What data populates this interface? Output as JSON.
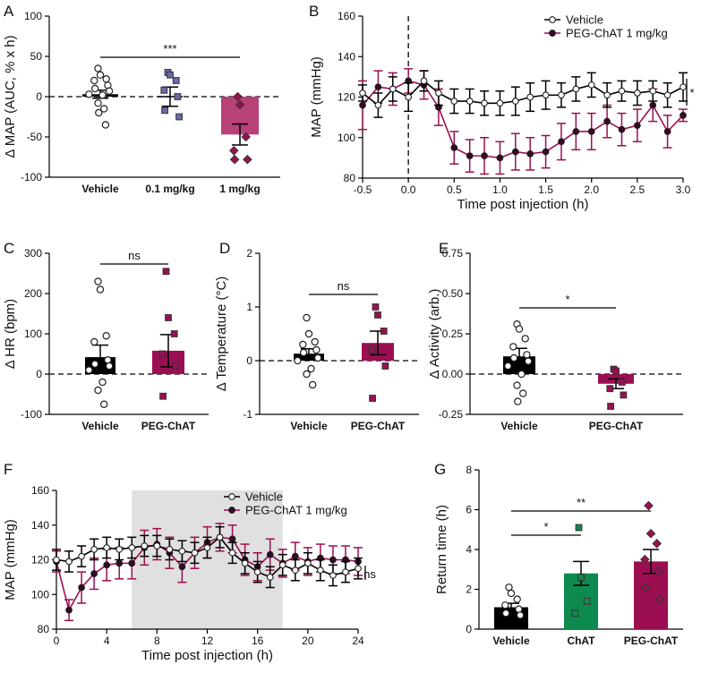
{
  "colors": {
    "vehicle": "#000000",
    "low": "#6a6aa8",
    "peg": "#9b0f52",
    "peg_light": "#b8417a",
    "chat": "#0f8a4e",
    "shade": "#e0e0e0"
  },
  "chart_data": [
    {
      "id": "A",
      "letter": "A",
      "type": "bar",
      "ylabel": "Δ MAP (AUC, % x h)",
      "ylim": [
        -100,
        100
      ],
      "yticks": [
        "100",
        "50",
        "0",
        "-50",
        "-100"
      ],
      "categories": [
        "Vehicle",
        "0.1 mg/kg",
        "1 mg/kg"
      ],
      "values": [
        3,
        0,
        -47
      ],
      "errors": [
        5,
        12,
        13
      ],
      "points": [
        [
          35,
          27,
          22,
          20,
          14,
          10,
          7,
          3,
          2,
          -8,
          -15,
          -20,
          -35
        ],
        [
          30,
          27,
          20,
          8,
          0,
          -17,
          -25
        ],
        [
          0,
          -10,
          -50,
          -67,
          -78,
          -78
        ]
      ],
      "significance": [
        {
          "from": 0,
          "to": 2,
          "label": "***"
        }
      ]
    },
    {
      "id": "B",
      "letter": "B",
      "type": "line",
      "ylabel": "MAP (mmHg)",
      "xlabel": "Time post injection (h)",
      "xlim": [
        -0.5,
        3.0
      ],
      "ylim": [
        80,
        160
      ],
      "xticks": [
        "-0.5",
        "0.0",
        "0.5",
        "1.0",
        "1.5",
        "2.0",
        "2.5",
        "3.0"
      ],
      "yticks": [
        "160",
        "140",
        "120",
        "100",
        "80"
      ],
      "x": [
        -0.5,
        -0.33,
        -0.17,
        0,
        0.17,
        0.33,
        0.5,
        0.67,
        0.83,
        1.0,
        1.17,
        1.33,
        1.5,
        1.67,
        1.83,
        2.0,
        2.17,
        2.33,
        2.5,
        2.67,
        2.83,
        3.0
      ],
      "series": [
        {
          "name": "Vehicle",
          "values": [
            122,
            116,
            124,
            120,
            128,
            122,
            118,
            118,
            117,
            117,
            118,
            120,
            121,
            121,
            124,
            126,
            121,
            123,
            122,
            123,
            121,
            125
          ],
          "err": [
            4,
            6,
            6,
            7,
            5,
            6,
            6,
            6,
            6,
            6,
            7,
            7,
            7,
            6,
            6,
            6,
            6,
            5,
            6,
            5,
            6,
            7
          ]
        },
        {
          "name": "PEG-ChAT 1 mg/kg",
          "values": [
            116,
            125,
            124,
            128,
            126,
            115,
            95,
            91,
            91,
            90,
            93,
            92,
            93,
            98,
            103,
            103,
            108,
            104,
            106,
            116,
            103,
            111
          ],
          "err": [
            12,
            8,
            8,
            6,
            7,
            9,
            8,
            8,
            9,
            8,
            9,
            8,
            8,
            9,
            9,
            9,
            8,
            8,
            8,
            8,
            8,
            3
          ]
        }
      ],
      "legend": [
        "Vehicle",
        "PEG-ChAT 1 mg/kg"
      ],
      "annotation": "*"
    },
    {
      "id": "C",
      "letter": "C",
      "type": "bar",
      "ylabel": "Δ HR (bpm)",
      "ylim": [
        -100,
        300
      ],
      "yticks": [
        "300",
        "200",
        "100",
        "0",
        "-100"
      ],
      "categories": [
        "Vehicle",
        "PEG-ChAT"
      ],
      "values": [
        42,
        58
      ],
      "errors": [
        30,
        40
      ],
      "points": [
        [
          230,
          210,
          95,
          80,
          35,
          25,
          20,
          10,
          -20,
          -40,
          -75
        ],
        [
          255,
          140,
          100,
          50,
          20,
          -55
        ]
      ],
      "significance": [
        {
          "from": 0,
          "to": 1,
          "label": "ns"
        }
      ]
    },
    {
      "id": "D",
      "letter": "D",
      "type": "bar",
      "ylabel": "Δ Temperature (°C)",
      "ylim": [
        -1,
        2
      ],
      "yticks": [
        "2",
        "1",
        "0",
        "-1"
      ],
      "categories": [
        "Vehicle",
        "PEG-ChAT"
      ],
      "values": [
        0.13,
        0.33
      ],
      "errors": [
        0.09,
        0.22
      ],
      "points": [
        [
          0.8,
          0.5,
          0.35,
          0.3,
          0.2,
          0.15,
          0.05,
          0.0,
          -0.15,
          -0.25,
          -0.45
        ],
        [
          1.0,
          0.85,
          0.55,
          0.2,
          -0.1,
          -0.7
        ]
      ],
      "significance": [
        {
          "from": 0,
          "to": 1,
          "label": "ns"
        }
      ]
    },
    {
      "id": "E",
      "letter": "E",
      "type": "bar",
      "ylabel": "Δ Activity (arb.)",
      "ylim": [
        -0.25,
        0.75
      ],
      "yticks": [
        "0.75",
        "0.50",
        "0.25",
        "0.00",
        "-0.25"
      ],
      "categories": [
        "Vehicle",
        "PEG-ChAT"
      ],
      "values": [
        0.11,
        -0.06
      ],
      "errors": [
        0.05,
        0.03
      ],
      "points": [
        [
          0.31,
          0.28,
          0.22,
          0.17,
          0.12,
          0.1,
          0.08,
          0.05,
          0.0,
          -0.07,
          -0.12,
          -0.17
        ],
        [
          0.03,
          0.02,
          -0.05,
          -0.09,
          -0.13,
          -0.2
        ]
      ],
      "significance": [
        {
          "from": 0,
          "to": 1,
          "label": "*"
        }
      ]
    },
    {
      "id": "F",
      "letter": "F",
      "type": "line",
      "ylabel": "MAP (mmHg)",
      "xlabel": "Time post injection (h)",
      "xlim": [
        0,
        24
      ],
      "ylim": [
        80,
        160
      ],
      "xticks": [
        "0",
        "4",
        "8",
        "12",
        "16",
        "20",
        "24"
      ],
      "yticks": [
        "160",
        "140",
        "120",
        "100",
        "80"
      ],
      "shaded_region": [
        6,
        18
      ],
      "x": [
        0,
        1,
        2,
        3,
        4,
        5,
        6,
        7,
        8,
        9,
        10,
        11,
        12,
        13,
        14,
        15,
        16,
        17,
        18,
        19,
        20,
        21,
        22,
        23,
        24
      ],
      "series": [
        {
          "name": "Vehicle",
          "values": [
            120,
            119,
            122,
            126,
            127,
            126,
            127,
            128,
            128,
            126,
            125,
            124,
            127,
            133,
            124,
            118,
            113,
            110,
            117,
            114,
            118,
            114,
            111,
            113,
            115
          ],
          "err": [
            6,
            6,
            6,
            6,
            6,
            6,
            6,
            6,
            6,
            6,
            6,
            6,
            6,
            6,
            6,
            6,
            6,
            6,
            6,
            6,
            6,
            6,
            6,
            6,
            6
          ]
        },
        {
          "name": "PEG-ChAT 1 mg/kg",
          "values": [
            119,
            91,
            104,
            112,
            117,
            118,
            118,
            127,
            129,
            124,
            116,
            124,
            130,
            133,
            132,
            120,
            116,
            123,
            118,
            122,
            119,
            121,
            120,
            120,
            119
          ],
          "err": [
            6,
            6,
            9,
            9,
            9,
            9,
            9,
            10,
            9,
            9,
            9,
            9,
            9,
            8,
            8,
            9,
            8,
            9,
            8,
            8,
            8,
            8,
            8,
            8,
            8
          ]
        }
      ],
      "legend": [
        "Vehicle",
        "PEG-ChAT 1 mg/kg"
      ],
      "annotation": "ns"
    },
    {
      "id": "G",
      "letter": "G",
      "type": "bar",
      "ylabel": "Return time (h)",
      "ylim": [
        0,
        8
      ],
      "yticks": [
        "8",
        "6",
        "4",
        "2",
        "0"
      ],
      "categories": [
        "Vehicle",
        "ChAT",
        "PEG-ChAT"
      ],
      "values": [
        1.1,
        2.8,
        3.4
      ],
      "errors": [
        0.2,
        0.6,
        0.6
      ],
      "points": [
        [
          2.1,
          1.8,
          1.5,
          1.2,
          1.0,
          0.8,
          0.7
        ],
        [
          5.1,
          2.6,
          1.4,
          0.8
        ],
        [
          6.2,
          4.8,
          4.3,
          3.5,
          2.9,
          2.1,
          1.5
        ]
      ],
      "significance": [
        {
          "from": 0,
          "to": 1,
          "label": "*"
        },
        {
          "from": 0,
          "to": 2,
          "label": "**"
        }
      ]
    }
  ]
}
